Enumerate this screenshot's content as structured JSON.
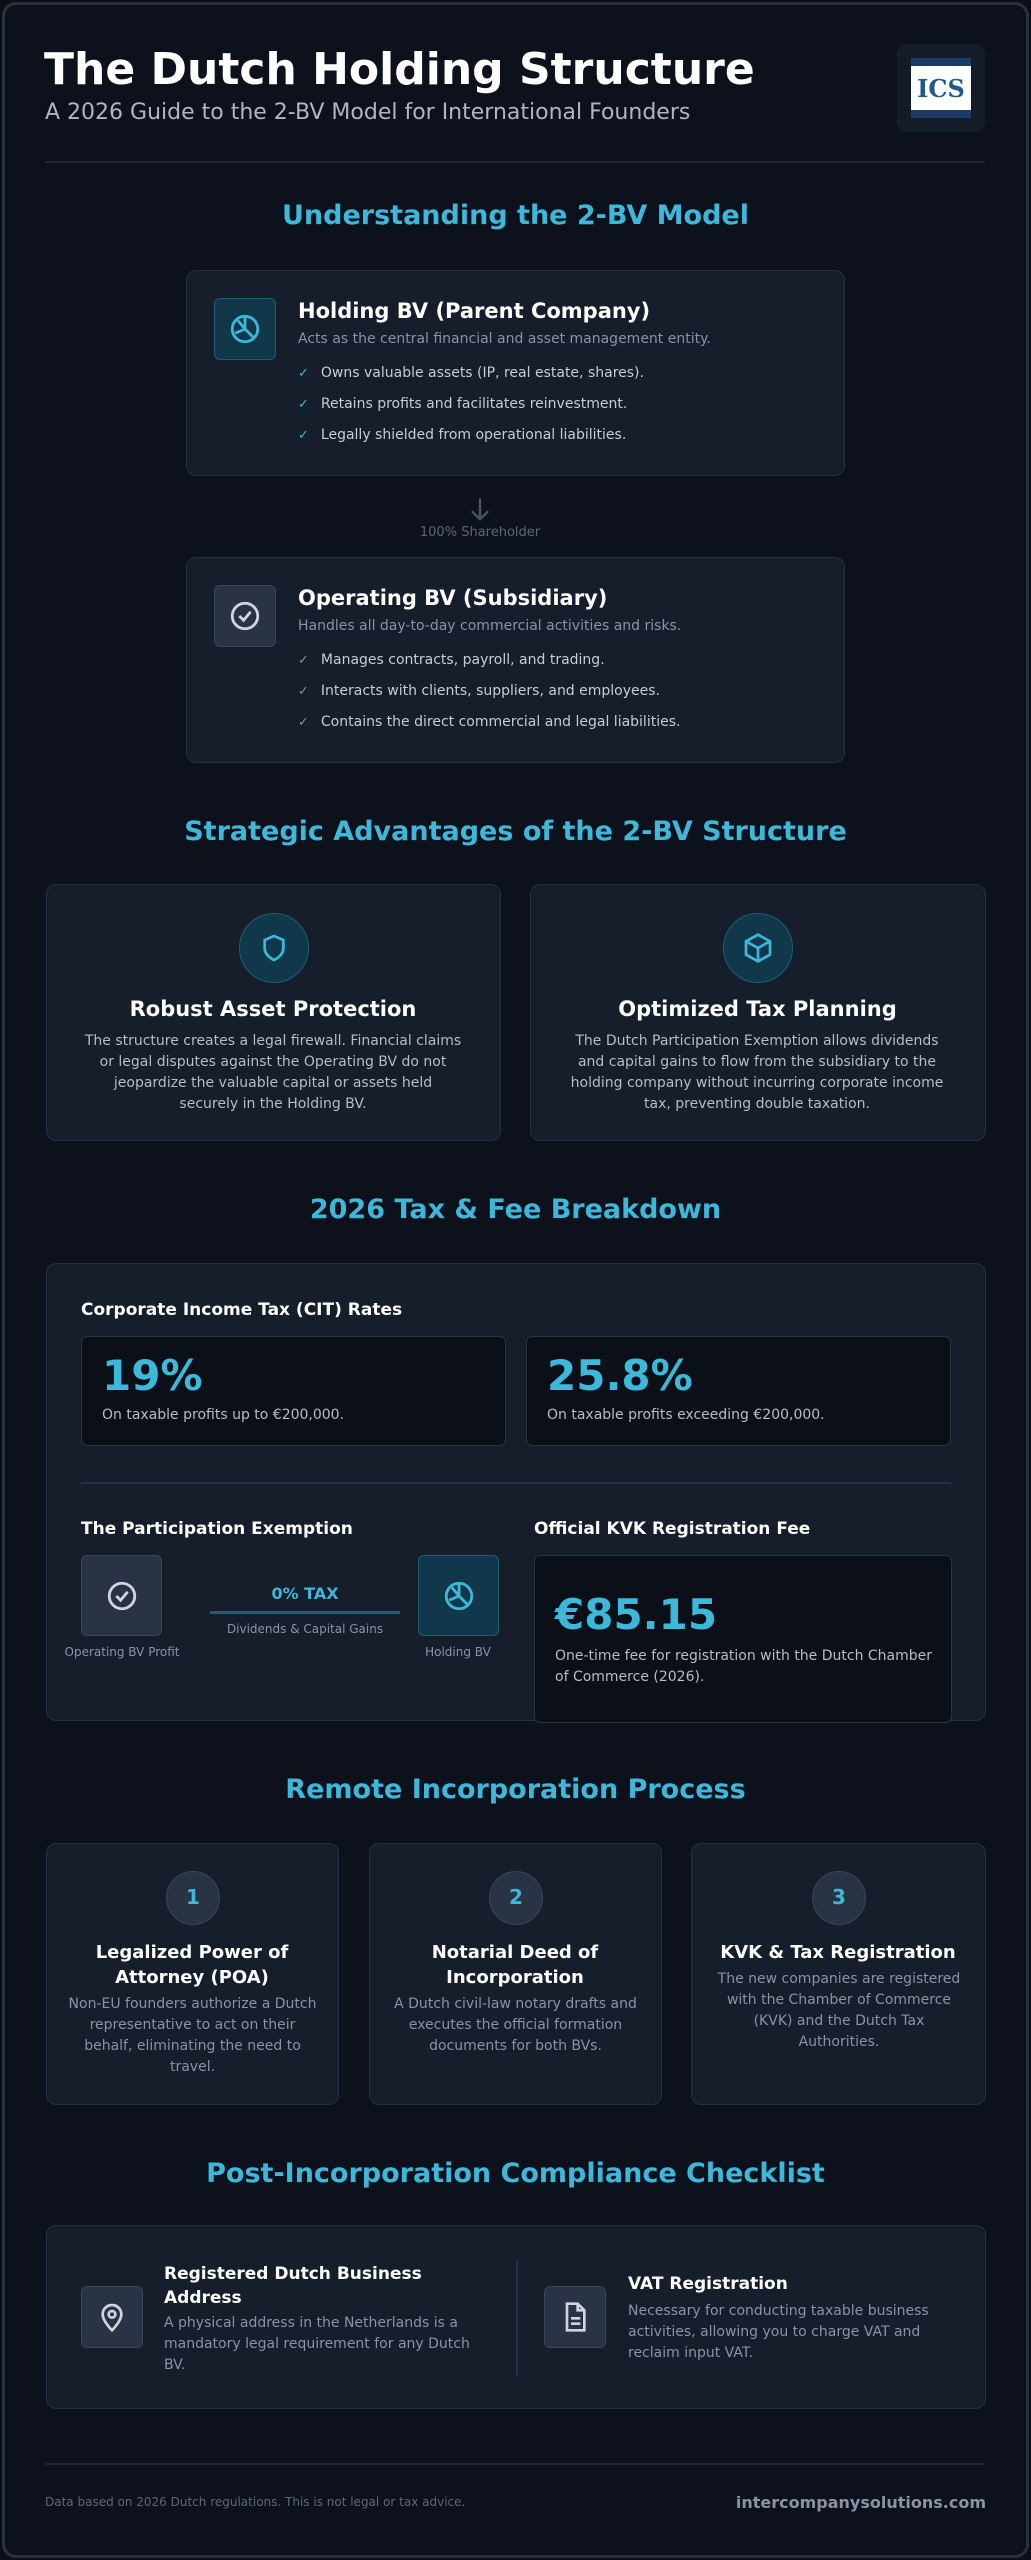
{
  "header": {
    "title": "The Dutch Holding Structure",
    "subtitle": "A 2026 Guide to the 2-BV Model for International Founders",
    "logo": "ICS"
  },
  "model": {
    "heading": "Understanding the 2-BV Model",
    "holding": {
      "title": "Holding BV (Parent Company)",
      "desc": "Acts as the central financial and asset management entity.",
      "items": [
        "Owns valuable assets (IP, real estate, shares).",
        "Retains profits and facilitates reinvestment.",
        "Legally shielded from operational liabilities."
      ]
    },
    "connector": "100% Shareholder",
    "operating": {
      "title": "Operating BV (Subsidiary)",
      "desc": "Handles all day-to-day commercial activities and risks.",
      "items": [
        "Manages contracts, payroll, and trading.",
        "Interacts with clients, suppliers, and employees.",
        "Contains the direct commercial and legal liabilities."
      ]
    }
  },
  "advantages": {
    "heading": "Strategic Advantages of the 2-BV Structure",
    "cards": [
      {
        "title": "Robust Asset Protection",
        "text": "The structure creates a legal firewall. Financial claims or legal disputes against the Operating BV do not jeopardize the valuable capital or assets held securely in the Holding BV."
      },
      {
        "title": "Optimized Tax Planning",
        "text": "The Dutch Participation Exemption allows dividends and capital gains to flow from the subsidiary to the holding company without incurring corporate income tax, preventing double taxation."
      }
    ]
  },
  "tax": {
    "heading": "2026 Tax & Fee Breakdown",
    "cit": {
      "title": "Corporate Income Tax (CIT) Rates",
      "rates": [
        {
          "value": "19%",
          "text": "On taxable profits up to €200,000."
        },
        {
          "value": "25.8%",
          "text": "On taxable profits exceeding €200,000."
        }
      ]
    },
    "exemption": {
      "title": "The Participation Exemption",
      "tax": "0% TAX",
      "flow": "Dividends & Capital Gains",
      "from": "Operating BV Profit",
      "to": "Holding BV"
    },
    "kvk": {
      "title": "Official KVK Registration Fee",
      "fee": "€85.15",
      "text": "One-time fee for registration with the Dutch Chamber of Commerce (2026)."
    }
  },
  "process": {
    "heading": "Remote Incorporation Process",
    "steps": [
      {
        "number": "1",
        "title": "Legalized Power of Attorney (POA)",
        "text": "Non-EU founders authorize a Dutch representative to act on their behalf, eliminating the need to travel."
      },
      {
        "number": "2",
        "title": "Notarial Deed of Incorporation",
        "text": "A Dutch civil-law notary drafts and executes the official formation documents for both BVs."
      },
      {
        "number": "3",
        "title": "KVK & Tax Registration",
        "text": "The new companies are registered with the Chamber of Commerce (KVK) and the Dutch Tax Authorities."
      }
    ]
  },
  "compliance": {
    "heading": "Post-Incorporation Compliance Checklist",
    "items": [
      {
        "title": "Registered Dutch Business Address",
        "text": "A physical address in the Netherlands is a mandatory legal requirement for any Dutch BV."
      },
      {
        "title": "VAT Registration",
        "text": "Necessary for conducting taxable business activities, allowing you to charge VAT and reclaim input VAT."
      }
    ]
  },
  "footer": {
    "disclaimer": "Data based on 2026 Dutch regulations. This is not legal or tax advice.",
    "site": "intercompanysolutions.com"
  }
}
